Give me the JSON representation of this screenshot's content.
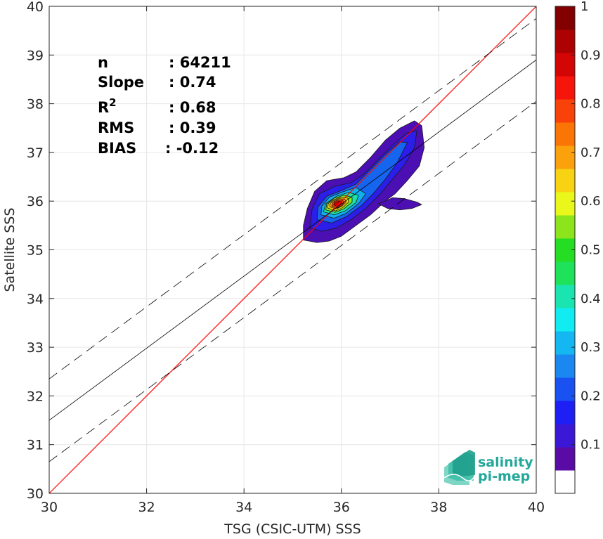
{
  "chart_data": {
    "type": "scatter",
    "subtype": "density-contour",
    "xlabel": "TSG (CSIC-UTM) SSS",
    "ylabel": "Satellite SSS",
    "xlim": [
      30,
      40
    ],
    "ylim": [
      30,
      40
    ],
    "xticks": [
      "30",
      "32",
      "34",
      "36",
      "38",
      "40"
    ],
    "yticks": [
      "30",
      "31",
      "32",
      "33",
      "34",
      "35",
      "36",
      "37",
      "38",
      "39",
      "40"
    ],
    "grid": true,
    "stats": [
      {
        "label": "n",
        "value": ": 64211"
      },
      {
        "label": "Slope",
        "value": ": 0.74"
      },
      {
        "label": "R",
        "sup": "2",
        "value": ": 0.68"
      },
      {
        "label": "RMS",
        "value": ": 0.39"
      },
      {
        "label": "BIAS",
        "value": ": -0.12"
      }
    ],
    "reference_line": {
      "slope": 1,
      "intercept": 0,
      "color": "#ff0000"
    },
    "fit_line": {
      "points": [
        [
          30,
          31.5
        ],
        [
          40,
          38.9
        ]
      ]
    },
    "confidence_lines": [
      {
        "points": [
          [
            30,
            32.35
          ],
          [
            40,
            39.75
          ]
        ]
      },
      {
        "points": [
          [
            30,
            30.65
          ],
          [
            40,
            38.05
          ]
        ]
      }
    ],
    "contour_levels": [
      {
        "level": 0.05,
        "color": "#4b0fb4",
        "polygons": [
          [
            [
              35.22,
              35.2
            ],
            [
              35.5,
              35.15
            ],
            [
              35.75,
              35.18
            ],
            [
              36.0,
              35.28
            ],
            [
              36.3,
              35.5
            ],
            [
              36.6,
              35.72
            ],
            [
              36.9,
              36.0
            ],
            [
              37.1,
              36.15
            ],
            [
              37.35,
              36.42
            ],
            [
              37.6,
              36.72
            ],
            [
              37.7,
              37.1
            ],
            [
              37.65,
              37.55
            ],
            [
              37.5,
              37.65
            ],
            [
              37.2,
              37.5
            ],
            [
              36.9,
              37.25
            ],
            [
              36.6,
              36.9
            ],
            [
              36.3,
              36.6
            ],
            [
              36.05,
              36.48
            ],
            [
              35.7,
              36.42
            ],
            [
              35.45,
              36.2
            ],
            [
              35.3,
              35.85
            ],
            [
              35.22,
              35.5
            ]
          ],
          [
            [
              36.75,
              35.95
            ],
            [
              36.9,
              36.0
            ],
            [
              37.05,
              36.07
            ],
            [
              37.3,
              36.05
            ],
            [
              37.55,
              35.98
            ],
            [
              37.65,
              35.93
            ],
            [
              37.45,
              35.85
            ],
            [
              37.2,
              35.82
            ],
            [
              36.95,
              35.85
            ]
          ]
        ]
      },
      {
        "level": 0.15,
        "color": "#2b1ee8",
        "polygons": [
          [
            [
              35.35,
              35.45
            ],
            [
              35.6,
              35.38
            ],
            [
              35.9,
              35.45
            ],
            [
              36.2,
              35.62
            ],
            [
              36.5,
              35.85
            ],
            [
              36.8,
              36.15
            ],
            [
              37.05,
              36.45
            ],
            [
              37.3,
              36.75
            ],
            [
              37.5,
              37.1
            ],
            [
              37.55,
              37.45
            ],
            [
              37.35,
              37.4
            ],
            [
              37.05,
              37.15
            ],
            [
              36.75,
              36.85
            ],
            [
              36.45,
              36.55
            ],
            [
              36.2,
              36.38
            ],
            [
              35.85,
              36.3
            ],
            [
              35.55,
              36.15
            ],
            [
              35.4,
              35.85
            ]
          ]
        ]
      },
      {
        "level": 0.25,
        "color": "#1665ee",
        "polygons": [
          [
            [
              35.5,
              35.62
            ],
            [
              35.8,
              35.55
            ],
            [
              36.1,
              35.68
            ],
            [
              36.4,
              35.9
            ],
            [
              36.65,
              36.15
            ],
            [
              36.9,
              36.45
            ],
            [
              37.15,
              36.8
            ],
            [
              37.35,
              37.2
            ],
            [
              37.2,
              37.22
            ],
            [
              36.9,
              36.95
            ],
            [
              36.6,
              36.65
            ],
            [
              36.3,
              36.35
            ],
            [
              36.0,
              36.22
            ],
            [
              35.7,
              36.1
            ],
            [
              35.52,
              35.88
            ]
          ]
        ]
      },
      {
        "level": 0.35,
        "color": "#0fb0ee",
        "polygons": [
          [
            [
              35.58,
              35.72
            ],
            [
              35.85,
              35.65
            ],
            [
              36.1,
              35.75
            ],
            [
              36.35,
              35.95
            ],
            [
              36.5,
              36.15
            ],
            [
              36.3,
              36.28
            ],
            [
              36.0,
              36.18
            ],
            [
              35.75,
              36.08
            ],
            [
              35.6,
              35.9
            ]
          ]
        ]
      },
      {
        "level": 0.45,
        "color": "#1ce2a6",
        "polygons": [
          [
            [
              35.63,
              35.78
            ],
            [
              35.85,
              35.72
            ],
            [
              36.08,
              35.8
            ],
            [
              36.3,
              35.97
            ],
            [
              36.35,
              36.12
            ],
            [
              36.15,
              36.18
            ],
            [
              35.9,
              36.1
            ],
            [
              35.68,
              35.95
            ]
          ]
        ]
      },
      {
        "level": 0.55,
        "color": "#8be81c",
        "polygons": [
          [
            [
              35.68,
              35.82
            ],
            [
              35.87,
              35.77
            ],
            [
              36.05,
              35.84
            ],
            [
              36.22,
              35.98
            ],
            [
              36.22,
              36.08
            ],
            [
              36.05,
              36.12
            ],
            [
              35.85,
              36.06
            ],
            [
              35.7,
              35.95
            ]
          ]
        ]
      },
      {
        "level": 0.65,
        "color": "#f7e010",
        "polygons": [
          [
            [
              35.72,
              35.86
            ],
            [
              35.88,
              35.8
            ],
            [
              36.03,
              35.87
            ],
            [
              36.15,
              35.98
            ],
            [
              36.13,
              36.06
            ],
            [
              35.98,
              36.08
            ],
            [
              35.82,
              36.02
            ],
            [
              35.73,
              35.95
            ]
          ]
        ]
      },
      {
        "level": 0.75,
        "color": "#fb9a0a",
        "polygons": [
          [
            [
              35.76,
              35.88
            ],
            [
              35.9,
              35.84
            ],
            [
              36.02,
              35.9
            ],
            [
              36.1,
              35.98
            ],
            [
              36.07,
              36.04
            ],
            [
              35.95,
              36.05
            ],
            [
              35.82,
              36.0
            ],
            [
              35.76,
              35.94
            ]
          ]
        ]
      },
      {
        "level": 0.85,
        "color": "#fb3c0a",
        "polygons": [
          [
            [
              35.8,
              35.9
            ],
            [
              35.92,
              35.86
            ],
            [
              36.02,
              35.92
            ],
            [
              36.06,
              35.98
            ],
            [
              36.02,
              36.02
            ],
            [
              35.92,
              36.02
            ],
            [
              35.83,
              35.98
            ]
          ]
        ]
      },
      {
        "level": 0.95,
        "color": "#c80000",
        "polygons": [
          [
            [
              35.84,
              35.92
            ],
            [
              35.93,
              35.89
            ],
            [
              36.0,
              35.94
            ],
            [
              36.01,
              35.99
            ],
            [
              35.94,
              36.0
            ],
            [
              35.86,
              35.97
            ]
          ]
        ]
      }
    ],
    "colorbar": {
      "ticks": [
        "0.1",
        "0.2",
        "0.3",
        "0.4",
        "0.5",
        "0.6",
        "0.7",
        "0.8",
        "0.9",
        "1"
      ],
      "range": [
        0,
        1
      ],
      "colors": [
        "#ffffff",
        "#5a0ba6",
        "#3a18d6",
        "#1d1ff5",
        "#1a52f2",
        "#1a88f0",
        "#15b7f2",
        "#10ecf2",
        "#1ae4b0",
        "#1ee35a",
        "#25dd22",
        "#8ce41c",
        "#e9f71b",
        "#f7d313",
        "#fba10c",
        "#fa7505",
        "#f94209",
        "#f5150a",
        "#d40505",
        "#ad0202",
        "#830000"
      ]
    },
    "logo": {
      "line1": "salinity",
      "line2": "pi-mep"
    }
  }
}
